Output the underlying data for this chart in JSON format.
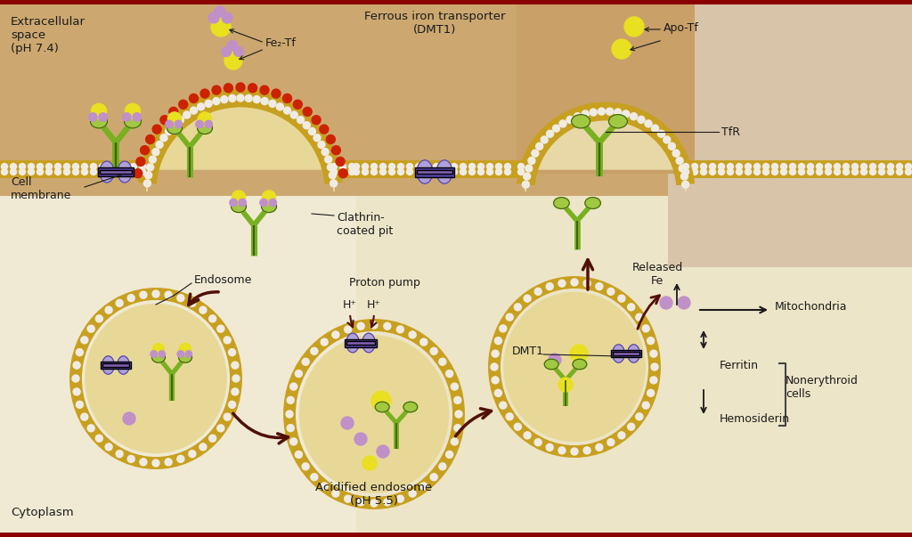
{
  "bg_extracellular_top": "#c8a870",
  "bg_extracellular_mid": "#d4b882",
  "bg_cytoplasm": "#e8ddb8",
  "bg_cytoplasm_light": "#f0e8c8",
  "membrane_gold": "#c8a020",
  "membrane_white": "#f0ece4",
  "endosome_fill": "#e8d898",
  "clathrin_red": "#cc2200",
  "receptor_purple_light": "#b0a0d8",
  "receptor_purple": "#9080c8",
  "receptor_purple_dark": "#5040a0",
  "receptor_green_light": "#a0c840",
  "receptor_green": "#78b020",
  "receptor_green_dark": "#406010",
  "fe_yellow": "#e8e020",
  "fe_yellow_light": "#f0e860",
  "fe_dot_purple": "#c090c8",
  "fe_dot_purple2": "#d0a0d8",
  "arrow_dark": "#501008",
  "text_color": "#1a1a1a",
  "nonerythroid_line": "#444444",
  "border_dark": "#8b0000",
  "labels": {
    "extracellular": "Extracellular\nspace\n(pH 7.4)",
    "fe2tf": "Fe₂-Tf",
    "ferrous": "Ferrous iron transporter\n(DMT1)",
    "apotf": "Apo-Tf",
    "tfr": "TfR",
    "cell_membrane": "Cell\nmembrane",
    "clathrin": "Clathrin-\ncoated pit",
    "endosome": "Endosome",
    "proton_pump": "Proton pump",
    "h_plus1": "H⁺",
    "h_plus2": "H⁺",
    "dmt1": "DMT1",
    "released_fe": "Released\nFe",
    "mitochondria": "→ Mitochondria",
    "ferritin": "Ferritin",
    "nonerythroid": "Nonerythroid\ncells",
    "hemosiderin": "Hemosiderin",
    "acidified": "Acidified endosome\n(pH 5.5)",
    "cytoplasm": "Cytoplasm"
  },
  "fig_width": 10.24,
  "fig_height": 6.03
}
